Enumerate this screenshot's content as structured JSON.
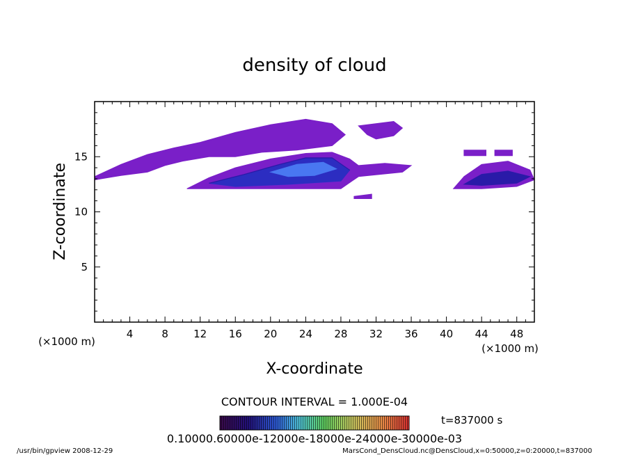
{
  "chart_data": {
    "type": "heatmap",
    "title": "density of cloud",
    "xlabel": "X-coordinate",
    "ylabel": "Z-coordinate",
    "x_unit": "(×1000 m)",
    "y_unit": "(×1000 m)",
    "xlim": [
      0,
      50
    ],
    "ylim": [
      0,
      20
    ],
    "x_ticks": [
      4,
      8,
      12,
      16,
      20,
      24,
      28,
      32,
      36,
      40,
      44,
      48
    ],
    "y_ticks": [
      5,
      10,
      15
    ],
    "contour_interval": "CONTOUR INTERVAL = 1.000E-04",
    "time_label": "t=837000 s",
    "colorbar_labels": "0.10000.60000e-12000e-18000e-24000e-30000e-03",
    "colors": {
      "purple": "#7a1fc8",
      "dark_blue": "#2a1aa8",
      "blue": "#2e45e0",
      "light_blue": "#5fa0ff"
    },
    "regions": [
      {
        "name": "upper-plume",
        "level": "low",
        "points": [
          [
            0,
            13.2
          ],
          [
            3,
            14.3
          ],
          [
            6,
            15.2
          ],
          [
            9,
            15.8
          ],
          [
            12,
            16.3
          ],
          [
            16,
            17.2
          ],
          [
            20,
            17.9
          ],
          [
            24,
            18.4
          ],
          [
            27,
            18.0
          ],
          [
            28.5,
            17.0
          ],
          [
            27,
            16.0
          ],
          [
            23,
            15.6
          ],
          [
            19,
            15.4
          ],
          [
            16,
            15.0
          ],
          [
            13,
            15.0
          ],
          [
            10,
            14.6
          ],
          [
            8,
            14.2
          ],
          [
            6,
            13.6
          ],
          [
            3,
            13.3
          ],
          [
            0,
            12.9
          ]
        ]
      },
      {
        "name": "upper-bubble",
        "level": "low",
        "points": [
          [
            30,
            17.8
          ],
          [
            34,
            18.2
          ],
          [
            35,
            17.6
          ],
          [
            34,
            16.9
          ],
          [
            32,
            16.6
          ],
          [
            31,
            17.0
          ]
        ]
      },
      {
        "name": "lower-plume",
        "level": "low",
        "points": [
          [
            10.5,
            12.1
          ],
          [
            13,
            13.1
          ],
          [
            16,
            14.0
          ],
          [
            20,
            14.8
          ],
          [
            24,
            15.3
          ],
          [
            27,
            15.4
          ],
          [
            29,
            14.8
          ],
          [
            30,
            14.2
          ],
          [
            33,
            14.4
          ],
          [
            36,
            14.2
          ],
          [
            35,
            13.6
          ],
          [
            30,
            13.2
          ],
          [
            28,
            12.1
          ],
          [
            20,
            12.1
          ]
        ]
      },
      {
        "name": "lower-core",
        "level": "mid",
        "points": [
          [
            13,
            12.6
          ],
          [
            17,
            13.4
          ],
          [
            21,
            14.3
          ],
          [
            24,
            14.9
          ],
          [
            27,
            14.9
          ],
          [
            29,
            13.8
          ],
          [
            28,
            12.8
          ],
          [
            22,
            12.5
          ],
          [
            16,
            12.3
          ]
        ]
      },
      {
        "name": "core-center",
        "level": "high",
        "points": [
          [
            20,
            13.6
          ],
          [
            23,
            14.3
          ],
          [
            26,
            14.5
          ],
          [
            27.5,
            13.9
          ],
          [
            25,
            13.3
          ],
          [
            22,
            13.2
          ]
        ]
      },
      {
        "name": "small-fragment",
        "level": "low",
        "points": [
          [
            29.5,
            11.4
          ],
          [
            31.5,
            11.6
          ],
          [
            31.5,
            11.2
          ],
          [
            29.5,
            11.2
          ]
        ]
      },
      {
        "name": "right-upper",
        "level": "low",
        "points": [
          [
            42,
            15.6
          ],
          [
            44.5,
            15.6
          ],
          [
            44.5,
            15.1
          ],
          [
            42,
            15.1
          ]
        ]
      },
      {
        "name": "right-upper-2",
        "level": "low",
        "points": [
          [
            45.5,
            15.6
          ],
          [
            47.5,
            15.6
          ],
          [
            47.5,
            15.1
          ],
          [
            45.5,
            15.1
          ]
        ]
      },
      {
        "name": "right-cloud",
        "level": "low",
        "points": [
          [
            40.8,
            12.1
          ],
          [
            42,
            13.2
          ],
          [
            44,
            14.3
          ],
          [
            47,
            14.6
          ],
          [
            49.5,
            13.8
          ],
          [
            50,
            12.9
          ],
          [
            48,
            12.3
          ],
          [
            44,
            12.1
          ]
        ]
      },
      {
        "name": "right-core",
        "level": "mid",
        "points": [
          [
            42,
            12.5
          ],
          [
            44,
            13.4
          ],
          [
            47,
            13.7
          ],
          [
            49.5,
            13.2
          ],
          [
            48,
            12.6
          ],
          [
            44,
            12.4
          ]
        ]
      }
    ]
  },
  "footer": {
    "left": "/usr/bin/gpview  2008-12-29",
    "right": "MarsCond_DensCloud.nc@DensCloud,x=0:50000,z=0:20000,t=837000"
  }
}
